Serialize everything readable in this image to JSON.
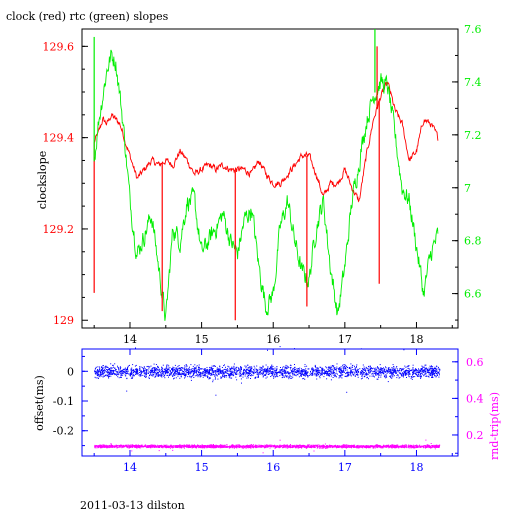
{
  "title": "clock (red) rtc (green) slopes",
  "footer": "2011-03-13 dilston",
  "colors": {
    "clock": "#ff0000",
    "rtc": "#00ee00",
    "offset": "#0000ff",
    "rndtrip": "#ff00ff",
    "axes": "#000000",
    "bottom_axes": "#0000ff"
  },
  "chart_data": [
    {
      "type": "line",
      "title": "clock (red) rtc (green) slopes",
      "xlim": [
        13.33,
        18.58
      ],
      "x_ticks": [
        "14",
        "15",
        "16",
        "17",
        "18"
      ],
      "ylabel": "clockslope",
      "ylim": [
        128.983,
        129.638
      ],
      "y_ticks": [
        "129",
        "129.2",
        "129.4",
        "129.6"
      ],
      "y2lim": [
        6.47,
        7.6
      ],
      "y2_ticks": [
        "6.6",
        "6.8",
        "7",
        "7.2",
        "7.4",
        "7.6"
      ],
      "grid": false,
      "series": [
        {
          "name": "clock",
          "axis": "left",
          "color": "#ff0000",
          "x": [
            13.5,
            13.56,
            13.62,
            13.68,
            13.74,
            13.8,
            13.86,
            13.92,
            14.0,
            14.1,
            14.2,
            14.3,
            14.4,
            14.5,
            14.6,
            14.7,
            14.8,
            14.9,
            15.0,
            15.1,
            15.2,
            15.3,
            15.4,
            15.5,
            15.6,
            15.7,
            15.8,
            15.9,
            16.0,
            16.1,
            16.2,
            16.3,
            16.4,
            16.5,
            16.6,
            16.7,
            16.8,
            16.9,
            17.0,
            17.1,
            17.2,
            17.3,
            17.4,
            17.5,
            17.6,
            17.7,
            17.8,
            17.9,
            18.0,
            18.1,
            18.2,
            18.3
          ],
          "y": [
            129.39,
            129.41,
            129.44,
            129.43,
            129.45,
            129.44,
            129.43,
            129.4,
            129.36,
            129.31,
            129.33,
            129.35,
            129.34,
            129.35,
            129.34,
            129.37,
            129.35,
            129.32,
            129.33,
            129.34,
            129.33,
            129.34,
            129.33,
            129.33,
            129.33,
            129.32,
            129.35,
            129.32,
            129.3,
            129.3,
            129.32,
            129.34,
            129.36,
            129.36,
            129.32,
            129.27,
            129.3,
            129.3,
            129.33,
            129.29,
            129.26,
            129.36,
            129.44,
            129.49,
            129.52,
            129.46,
            129.43,
            129.35,
            129.37,
            129.44,
            129.43,
            129.4
          ]
        },
        {
          "name": "rtc",
          "axis": "right",
          "color": "#00ee00",
          "x": [
            13.5,
            13.56,
            13.62,
            13.68,
            13.74,
            13.8,
            13.86,
            13.92,
            14.0,
            14.1,
            14.2,
            14.3,
            14.4,
            14.5,
            14.6,
            14.7,
            14.8,
            14.9,
            15.0,
            15.1,
            15.2,
            15.3,
            15.4,
            15.5,
            15.6,
            15.7,
            15.8,
            15.9,
            16.0,
            16.1,
            16.2,
            16.3,
            16.4,
            16.5,
            16.6,
            16.7,
            16.8,
            16.9,
            17.0,
            17.1,
            17.2,
            17.3,
            17.4,
            17.5,
            17.6,
            17.7,
            17.8,
            17.9,
            18.0,
            18.1,
            18.2,
            18.3
          ],
          "y": [
            7.1,
            7.25,
            7.35,
            7.45,
            7.5,
            7.48,
            7.35,
            7.2,
            6.95,
            6.75,
            6.82,
            6.9,
            6.7,
            6.5,
            6.85,
            6.8,
            6.95,
            6.95,
            6.75,
            6.8,
            6.85,
            6.9,
            6.8,
            6.75,
            6.88,
            6.92,
            6.7,
            6.55,
            6.6,
            6.85,
            6.95,
            6.8,
            6.68,
            6.65,
            6.85,
            6.95,
            6.7,
            6.52,
            6.7,
            6.95,
            7.1,
            7.25,
            7.35,
            7.4,
            7.38,
            7.2,
            7.0,
            6.95,
            6.78,
            6.6,
            6.75,
            6.82
          ]
        }
      ],
      "spikes": [
        {
          "series": "clock",
          "x": 13.5,
          "to": 129.06
        },
        {
          "series": "clock",
          "x": 14.45,
          "to": 129.02
        },
        {
          "series": "clock",
          "x": 15.47,
          "to": 129.0
        },
        {
          "series": "clock",
          "x": 16.47,
          "to": 129.03
        },
        {
          "series": "clock",
          "x": 17.48,
          "to": 129.08
        },
        {
          "series": "clock",
          "x": 17.45,
          "to": 129.6
        },
        {
          "series": "rtc",
          "x": 13.5,
          "to": 7.57
        },
        {
          "series": "rtc",
          "x": 17.42,
          "to": 7.6
        }
      ]
    },
    {
      "type": "scatter",
      "ylabel": "offset(ms)",
      "y2label": "rnd-trip(ms)",
      "xlim": [
        13.33,
        18.58
      ],
      "x_ticks": [
        "14",
        "15",
        "16",
        "17",
        "18"
      ],
      "ylim": [
        -0.285,
        0.075
      ],
      "y_ticks": [
        "0",
        "-0.1",
        "-0.2"
      ],
      "y2lim": [
        0.085,
        0.67
      ],
      "y2_ticks": [
        "0.2",
        "0.4",
        "0.6"
      ],
      "grid": false,
      "series": [
        {
          "name": "offset",
          "axis": "left",
          "color": "#0000ff",
          "x_range": [
            13.5,
            18.32
          ],
          "center": 0.0,
          "spread": 0.03
        },
        {
          "name": "rnd-trip",
          "axis": "right",
          "color": "#ff00ff",
          "x_range": [
            13.5,
            18.32
          ],
          "center": 0.14,
          "spread": 0.012
        }
      ]
    }
  ]
}
